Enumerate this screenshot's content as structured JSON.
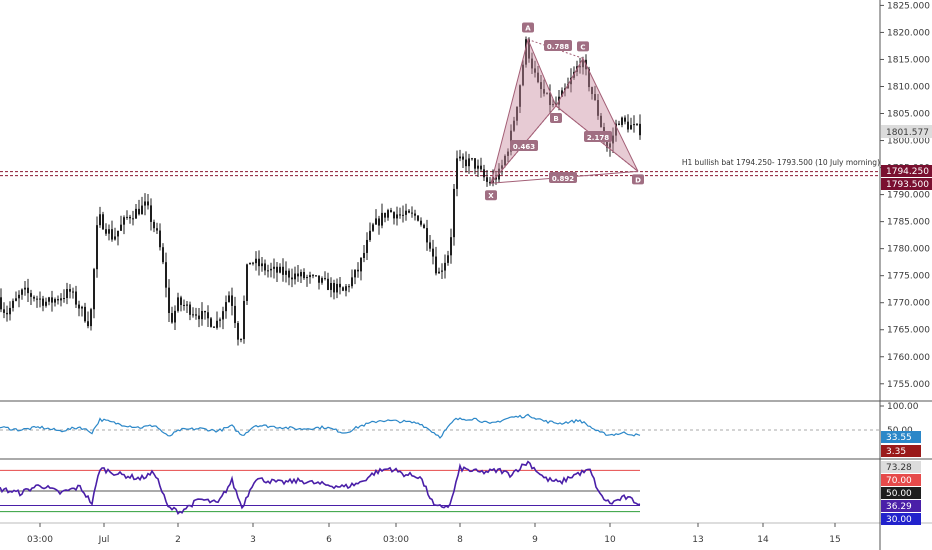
{
  "colors": {
    "candle": "#1e1e1e",
    "pattern_fill": "#c98c9f",
    "pattern_stroke": "#a35f76",
    "label_bg": "#a06e82",
    "level_line": "#8a1a33",
    "level_tag": "#7a1030",
    "price_tag": "#dcdcdc",
    "osc1": "#2b87c8",
    "osc1_tag": "#2b87c8",
    "osc1_tag2": "#9a1a1a",
    "rsi_line": "#4a1fa8",
    "rsi_upper": "#e64a4a",
    "rsi_lower": "#2e9e3a",
    "rsi_mid": "#555555",
    "grid": "#efefef"
  },
  "chart_data": [
    {
      "type": "candlestick",
      "title": "",
      "ylim": [
        1752,
        1826
      ],
      "y_ticks": [
        "1825.000",
        "1820.000",
        "1815.000",
        "1810.000",
        "1805.000",
        "1800.000",
        "1795.000",
        "1790.000",
        "1785.000",
        "1780.000",
        "1775.000",
        "1770.000",
        "1765.000",
        "1760.000",
        "1755.000"
      ],
      "x_ticks": [
        "03:00",
        "Jul",
        "2",
        "3",
        "6",
        "03:00",
        "8",
        "9",
        "10",
        "13",
        "14",
        "15"
      ],
      "last_price": "1801.577",
      "levels": [
        {
          "label": "1794.250",
          "value": 1794.25
        },
        {
          "label": "1793.500",
          "value": 1793.5
        }
      ],
      "annotation": "H1 bullish bat 1794.250- 1793.500 (10 July morning)",
      "harmonic_pattern": {
        "points": [
          {
            "name": "X",
            "value": 1792.1
          },
          {
            "name": "A",
            "value": 1818.7
          },
          {
            "name": "B",
            "value": 1806.4
          },
          {
            "name": "C",
            "value": 1815.2
          },
          {
            "name": "D",
            "value": 1794.3
          }
        ],
        "ratios": [
          "0.788",
          "0.463",
          "2.178",
          "0.892"
        ]
      },
      "anchors": [
        [
          0,
          1771
        ],
        [
          8,
          1768
        ],
        [
          25,
          1772
        ],
        [
          50,
          1770
        ],
        [
          72,
          1772
        ],
        [
          92,
          1766
        ],
        [
          100,
          1786
        ],
        [
          115,
          1782
        ],
        [
          130,
          1786
        ],
        [
          148,
          1788
        ],
        [
          160,
          1782
        ],
        [
          167,
          1775
        ],
        [
          172,
          1766
        ],
        [
          180,
          1770
        ],
        [
          200,
          1768
        ],
        [
          218,
          1766
        ],
        [
          232,
          1772
        ],
        [
          242,
          1762
        ],
        [
          250,
          1778
        ],
        [
          270,
          1776
        ],
        [
          300,
          1775
        ],
        [
          320,
          1774
        ],
        [
          345,
          1772
        ],
        [
          360,
          1776
        ],
        [
          375,
          1784
        ],
        [
          390,
          1787
        ],
        [
          405,
          1786
        ],
        [
          420,
          1786
        ],
        [
          432,
          1781
        ],
        [
          440,
          1775
        ],
        [
          452,
          1780
        ],
        [
          458,
          1796
        ],
        [
          475,
          1796
        ],
        [
          490,
          1792
        ],
        [
          502,
          1794
        ],
        [
          512,
          1800
        ],
        [
          520,
          1808
        ],
        [
          528,
          1818
        ],
        [
          540,
          1810
        ],
        [
          556,
          1806
        ],
        [
          570,
          1810
        ],
        [
          583,
          1815
        ],
        [
          592,
          1810
        ],
        [
          600,
          1805
        ],
        [
          610,
          1798
        ],
        [
          620,
          1804
        ],
        [
          628,
          1803
        ],
        [
          640,
          1802
        ]
      ]
    },
    {
      "type": "line",
      "title": "",
      "ylim": [
        0,
        100
      ],
      "y_ticks": [
        "100.00",
        "50.00"
      ],
      "values_shown": [
        "33.55",
        "3.35"
      ],
      "dashed_level": 50,
      "anchors": [
        [
          0,
          56
        ],
        [
          20,
          50
        ],
        [
          40,
          56
        ],
        [
          60,
          48
        ],
        [
          80,
          56
        ],
        [
          92,
          45
        ],
        [
          100,
          72
        ],
        [
          120,
          62
        ],
        [
          140,
          55
        ],
        [
          155,
          60
        ],
        [
          168,
          36
        ],
        [
          180,
          50
        ],
        [
          200,
          53
        ],
        [
          218,
          48
        ],
        [
          232,
          58
        ],
        [
          242,
          38
        ],
        [
          255,
          60
        ],
        [
          280,
          56
        ],
        [
          300,
          52
        ],
        [
          325,
          56
        ],
        [
          345,
          44
        ],
        [
          360,
          58
        ],
        [
          380,
          70
        ],
        [
          400,
          68
        ],
        [
          420,
          64
        ],
        [
          440,
          36
        ],
        [
          455,
          72
        ],
        [
          475,
          74
        ],
        [
          490,
          62
        ],
        [
          510,
          76
        ],
        [
          530,
          80
        ],
        [
          545,
          68
        ],
        [
          560,
          64
        ],
        [
          580,
          70
        ],
        [
          600,
          44
        ],
        [
          610,
          40
        ],
        [
          625,
          44
        ],
        [
          640,
          38
        ]
      ]
    },
    {
      "type": "line",
      "title": "",
      "ylim": [
        20,
        80
      ],
      "y_ticks": [
        "73.28",
        "70.00",
        "50.00",
        "36.29",
        "30.00"
      ],
      "levels": [
        70,
        50,
        30
      ],
      "anchors": [
        [
          0,
          52
        ],
        [
          20,
          48
        ],
        [
          40,
          56
        ],
        [
          60,
          48
        ],
        [
          80,
          54
        ],
        [
          92,
          38
        ],
        [
          100,
          72
        ],
        [
          120,
          66
        ],
        [
          140,
          62
        ],
        [
          155,
          68
        ],
        [
          168,
          34
        ],
        [
          180,
          30
        ],
        [
          200,
          42
        ],
        [
          218,
          38
        ],
        [
          232,
          60
        ],
        [
          242,
          34
        ],
        [
          255,
          62
        ],
        [
          280,
          58
        ],
        [
          300,
          60
        ],
        [
          325,
          56
        ],
        [
          345,
          54
        ],
        [
          360,
          58
        ],
        [
          375,
          68
        ],
        [
          390,
          72
        ],
        [
          405,
          66
        ],
        [
          420,
          64
        ],
        [
          435,
          34
        ],
        [
          450,
          36
        ],
        [
          460,
          72
        ],
        [
          480,
          68
        ],
        [
          500,
          70
        ],
        [
          510,
          66
        ],
        [
          528,
          78
        ],
        [
          545,
          62
        ],
        [
          560,
          58
        ],
        [
          575,
          66
        ],
        [
          590,
          70
        ],
        [
          600,
          46
        ],
        [
          610,
          38
        ],
        [
          625,
          44
        ],
        [
          640,
          38
        ]
      ]
    }
  ]
}
